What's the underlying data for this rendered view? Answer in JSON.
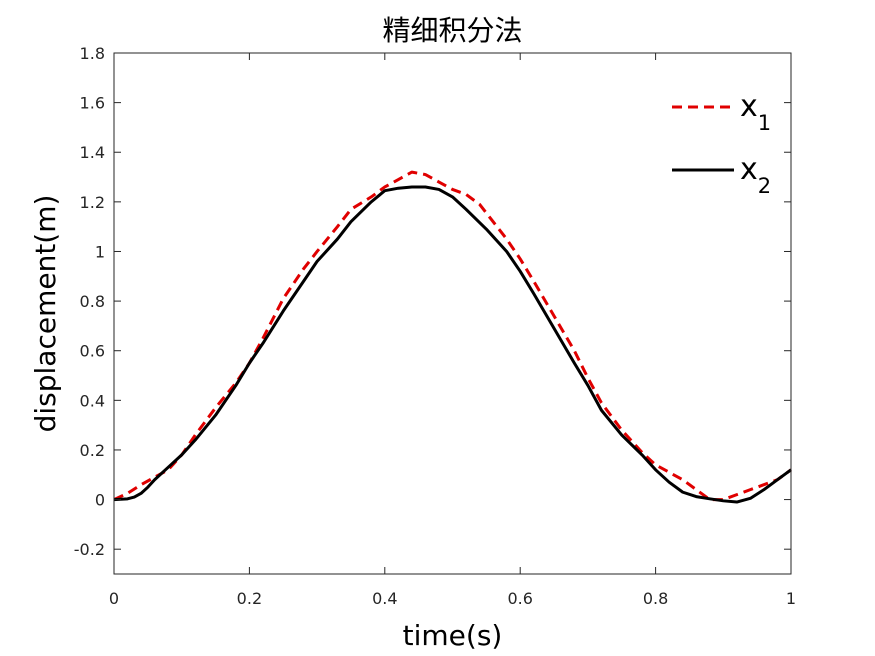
{
  "chart_data": {
    "type": "line",
    "title": "精细积分法",
    "xlabel": "time(s)",
    "ylabel": "displacement(m)",
    "xlim": [
      0,
      1
    ],
    "ylim": [
      -0.3,
      1.8
    ],
    "xticks": [
      0,
      0.2,
      0.4,
      0.6,
      0.8,
      1
    ],
    "xtick_labels": [
      "0",
      "0.2",
      "0.4",
      "0.6",
      "0.8",
      "1"
    ],
    "yticks": [
      -0.2,
      0,
      0.2,
      0.4,
      0.6,
      0.8,
      1,
      1.2,
      1.4,
      1.6,
      1.8
    ],
    "ytick_labels": [
      "-0.2",
      "0",
      "0.2",
      "0.4",
      "0.6",
      "0.8",
      "1",
      "1.2",
      "1.4",
      "1.6",
      "1.8"
    ],
    "grid": false,
    "legend_position": "top-right",
    "series": [
      {
        "name": "x",
        "name_sub": "1",
        "color": "#e00000",
        "dash": "dashed",
        "x": [
          0,
          0.02,
          0.04,
          0.06,
          0.08,
          0.1,
          0.12,
          0.15,
          0.18,
          0.2,
          0.22,
          0.25,
          0.28,
          0.3,
          0.33,
          0.35,
          0.38,
          0.4,
          0.42,
          0.44,
          0.46,
          0.48,
          0.5,
          0.52,
          0.54,
          0.56,
          0.58,
          0.6,
          0.62,
          0.65,
          0.68,
          0.7,
          0.72,
          0.75,
          0.78,
          0.8,
          0.82,
          0.84,
          0.86,
          0.88,
          0.9,
          0.92,
          0.94,
          0.96,
          0.98,
          1.0
        ],
        "y": [
          0.0,
          0.025,
          0.06,
          0.09,
          0.12,
          0.18,
          0.26,
          0.37,
          0.47,
          0.55,
          0.65,
          0.81,
          0.93,
          1.0,
          1.1,
          1.17,
          1.22,
          1.26,
          1.29,
          1.32,
          1.31,
          1.28,
          1.25,
          1.23,
          1.19,
          1.12,
          1.05,
          0.97,
          0.88,
          0.74,
          0.6,
          0.49,
          0.39,
          0.28,
          0.19,
          0.14,
          0.11,
          0.08,
          0.04,
          0.0,
          0.0,
          0.02,
          0.04,
          0.06,
          0.08,
          0.12
        ]
      },
      {
        "name": "x",
        "name_sub": "2",
        "color": "#000000",
        "dash": "solid",
        "x": [
          0,
          0.02,
          0.03,
          0.04,
          0.05,
          0.06,
          0.08,
          0.1,
          0.12,
          0.15,
          0.18,
          0.2,
          0.22,
          0.25,
          0.28,
          0.3,
          0.33,
          0.35,
          0.38,
          0.4,
          0.42,
          0.44,
          0.46,
          0.48,
          0.5,
          0.52,
          0.55,
          0.58,
          0.6,
          0.62,
          0.65,
          0.68,
          0.7,
          0.72,
          0.75,
          0.78,
          0.8,
          0.82,
          0.84,
          0.86,
          0.88,
          0.9,
          0.92,
          0.94,
          0.96,
          0.98,
          1.0
        ],
        "y": [
          0.0,
          0.003,
          0.01,
          0.025,
          0.05,
          0.08,
          0.13,
          0.18,
          0.24,
          0.34,
          0.46,
          0.55,
          0.63,
          0.76,
          0.88,
          0.96,
          1.05,
          1.12,
          1.2,
          1.245,
          1.255,
          1.26,
          1.26,
          1.25,
          1.22,
          1.17,
          1.09,
          1.0,
          0.92,
          0.83,
          0.69,
          0.55,
          0.46,
          0.36,
          0.26,
          0.18,
          0.12,
          0.07,
          0.03,
          0.012,
          0.003,
          -0.005,
          -0.01,
          0.005,
          0.04,
          0.08,
          0.12
        ]
      }
    ]
  }
}
